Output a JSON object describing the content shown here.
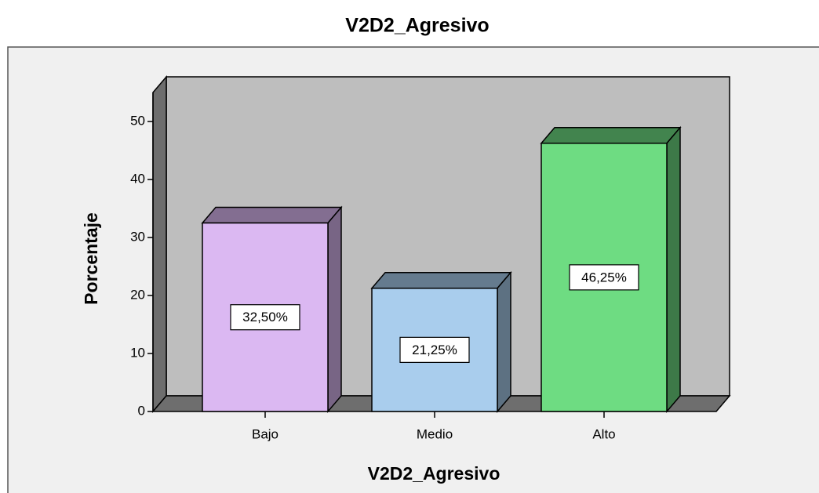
{
  "chart_data": {
    "type": "bar3d",
    "title": "V2D2_Agresivo",
    "x_label": "V2D2_Agresivo",
    "y_label": "Porcentaje",
    "categories": [
      "Bajo",
      "Medio",
      "Alto"
    ],
    "values": [
      32.5,
      21.25,
      46.25
    ],
    "value_labels": [
      "32,50%",
      "21,25%",
      "46,25%"
    ],
    "colors": [
      "#dbb8f2",
      "#a9cded",
      "#6edc82"
    ],
    "ylim": [
      0,
      55
    ],
    "yticks": [
      0,
      10,
      20,
      30,
      40,
      50
    ]
  }
}
